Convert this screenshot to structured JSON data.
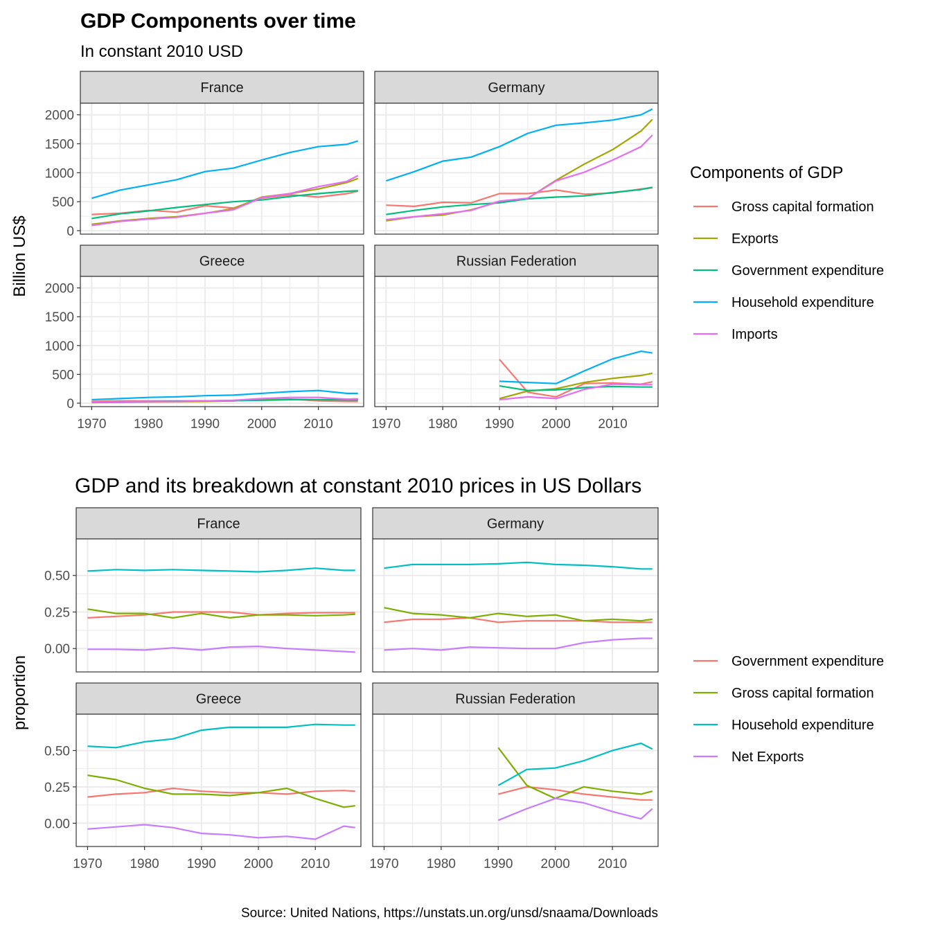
{
  "colors": {
    "gdp_components": [
      "#F8766D",
      "#A3A500",
      "#00BF7D",
      "#00B0F6",
      "#E76BF3"
    ],
    "breakdown": [
      "#F8766D",
      "#7CAE00",
      "#00BFC4",
      "#C77CFF"
    ],
    "strip_fill": "#D9D9D9",
    "grid": "#EBEBEB"
  },
  "top_chart": {
    "title": "GDP Components over time",
    "subtitle": "In constant 2010 USD",
    "ylabel": "Billion US$",
    "legend_title": "Components of GDP",
    "legend_position": "right",
    "y_ticks": [
      "0",
      "500",
      "1000",
      "1500",
      "2000"
    ],
    "x_ticks": [
      "1970",
      "1980",
      "1990",
      "2000",
      "2010"
    ]
  },
  "bottom_chart": {
    "title": "GDP and its breakdown at constant 2010 prices in US Dollars",
    "ylabel": "proportion",
    "legend_position": "right",
    "y_ticks": [
      "0.00",
      "0.25",
      "0.50"
    ],
    "x_ticks": [
      "1970",
      "1980",
      "1990",
      "2000",
      "2010"
    ]
  },
  "source": "Source: United Nations, https://unstats.un.org/unsd/snaama/Downloads",
  "chart_data": [
    {
      "type": "line",
      "title": "GDP Components over time",
      "subtitle": "In constant 2010 USD",
      "ylabel": "Billion US$",
      "xlim": [
        1968,
        2018
      ],
      "ylim": [
        -60,
        2200
      ],
      "grid": true,
      "x": [
        1970,
        1975,
        1980,
        1985,
        1990,
        1995,
        2000,
        2005,
        2010,
        2015,
        2017
      ],
      "series_names": [
        "Gross capital formation",
        "Exports",
        "Government expenditure",
        "Household expenditure",
        "Imports"
      ],
      "facets": [
        {
          "name": "France",
          "series": [
            {
              "name": "Gross capital formation",
              "values": [
                280,
                300,
                350,
                320,
                430,
                390,
                560,
                620,
                580,
                640,
                680
              ]
            },
            {
              "name": "Exports",
              "values": [
                110,
                170,
                210,
                240,
                300,
                380,
                580,
                640,
                720,
                830,
                900
              ]
            },
            {
              "name": "Government expenditure",
              "values": [
                210,
                290,
                340,
                400,
                450,
                500,
                530,
                590,
                640,
                680,
                690
              ]
            },
            {
              "name": "Household expenditure",
              "values": [
                560,
                700,
                790,
                880,
                1020,
                1080,
                1220,
                1350,
                1450,
                1490,
                1550
              ]
            },
            {
              "name": "Imports",
              "values": [
                90,
                160,
                200,
                230,
                300,
                360,
                570,
                640,
                760,
                850,
                950
              ]
            }
          ]
        },
        {
          "name": "Germany",
          "series": [
            {
              "name": "Gross capital formation",
              "values": [
                440,
                420,
                490,
                480,
                640,
                640,
                700,
                630,
                650,
                720,
                740
              ]
            },
            {
              "name": "Exports",
              "values": [
                170,
                240,
                270,
                360,
                500,
                560,
                870,
                1150,
                1400,
                1720,
                1920
              ]
            },
            {
              "name": "Government expenditure",
              "values": [
                280,
                350,
                410,
                450,
                480,
                550,
                580,
                600,
                660,
                710,
                750
              ]
            },
            {
              "name": "Household expenditure",
              "values": [
                860,
                1020,
                1200,
                1270,
                1450,
                1680,
                1820,
                1860,
                1910,
                2000,
                2100
              ]
            },
            {
              "name": "Imports",
              "values": [
                190,
                240,
                290,
                350,
                510,
                560,
                860,
                1010,
                1220,
                1450,
                1650
              ]
            }
          ]
        },
        {
          "name": "Greece",
          "series": [
            {
              "name": "Gross capital formation",
              "values": [
                30,
                40,
                40,
                40,
                40,
                40,
                60,
                70,
                40,
                30,
                30
              ]
            },
            {
              "name": "Exports",
              "values": [
                10,
                15,
                20,
                25,
                30,
                40,
                60,
                70,
                60,
                70,
                75
              ]
            },
            {
              "name": "Government expenditure",
              "values": [
                20,
                25,
                30,
                35,
                40,
                45,
                50,
                60,
                60,
                55,
                55
              ]
            },
            {
              "name": "Household expenditure",
              "values": [
                60,
                80,
                100,
                110,
                130,
                140,
                170,
                200,
                220,
                170,
                170
              ]
            },
            {
              "name": "Imports",
              "values": [
                20,
                25,
                30,
                30,
                40,
                50,
                80,
                100,
                100,
                70,
                75
              ]
            }
          ]
        },
        {
          "name": "Russian Federation",
          "series": [
            {
              "name": "Gross capital formation",
              "values": [
                null,
                null,
                null,
                null,
                760,
                190,
                110,
                340,
                350,
                330,
                370
              ]
            },
            {
              "name": "Exports",
              "values": [
                null,
                null,
                null,
                null,
                80,
                210,
                250,
                360,
                430,
                480,
                520
              ]
            },
            {
              "name": "Government expenditure",
              "values": [
                null,
                null,
                null,
                null,
                300,
                220,
                230,
                270,
                290,
                280,
                280
              ]
            },
            {
              "name": "Household expenditure",
              "values": [
                null,
                null,
                null,
                null,
                380,
                360,
                340,
                560,
                770,
                900,
                870
              ]
            },
            {
              "name": "Imports",
              "values": [
                null,
                null,
                null,
                null,
                60,
                110,
                80,
                240,
                330,
                320,
                320
              ]
            }
          ]
        }
      ]
    },
    {
      "type": "line",
      "title": "GDP and its breakdown at constant 2010 prices in US Dollars",
      "ylabel": "proportion",
      "xlim": [
        1968,
        2018
      ],
      "ylim": [
        -0.16,
        0.75
      ],
      "grid": true,
      "x": [
        1970,
        1975,
        1980,
        1985,
        1990,
        1995,
        2000,
        2005,
        2010,
        2015,
        2017
      ],
      "series_names": [
        "Government expenditure",
        "Gross capital formation",
        "Household expenditure",
        "Net Exports"
      ],
      "facets": [
        {
          "name": "France",
          "series": [
            {
              "name": "Government expenditure",
              "values": [
                0.21,
                0.22,
                0.23,
                0.25,
                0.25,
                0.25,
                0.23,
                0.24,
                0.245,
                0.245,
                0.245
              ]
            },
            {
              "name": "Gross capital formation",
              "values": [
                0.27,
                0.24,
                0.24,
                0.21,
                0.24,
                0.21,
                0.23,
                0.23,
                0.225,
                0.23,
                0.235
              ]
            },
            {
              "name": "Household expenditure",
              "values": [
                0.53,
                0.54,
                0.535,
                0.54,
                0.535,
                0.53,
                0.525,
                0.535,
                0.55,
                0.535,
                0.535
              ]
            },
            {
              "name": "Net Exports",
              "values": [
                -0.005,
                -0.005,
                -0.01,
                0.005,
                -0.01,
                0.01,
                0.015,
                0.0,
                -0.01,
                -0.02,
                -0.025
              ]
            }
          ]
        },
        {
          "name": "Germany",
          "series": [
            {
              "name": "Government expenditure",
              "values": [
                0.18,
                0.2,
                0.2,
                0.21,
                0.18,
                0.19,
                0.19,
                0.19,
                0.18,
                0.18,
                0.18
              ]
            },
            {
              "name": "Gross capital formation",
              "values": [
                0.28,
                0.24,
                0.23,
                0.21,
                0.24,
                0.22,
                0.23,
                0.19,
                0.2,
                0.19,
                0.2
              ]
            },
            {
              "name": "Household expenditure",
              "values": [
                0.55,
                0.575,
                0.575,
                0.575,
                0.58,
                0.59,
                0.575,
                0.57,
                0.56,
                0.545,
                0.545
              ]
            },
            {
              "name": "Net Exports",
              "values": [
                -0.01,
                0.0,
                -0.01,
                0.01,
                0.005,
                0.0,
                0.0,
                0.04,
                0.06,
                0.07,
                0.07
              ]
            }
          ]
        },
        {
          "name": "Greece",
          "series": [
            {
              "name": "Government expenditure",
              "values": [
                0.18,
                0.2,
                0.21,
                0.24,
                0.22,
                0.21,
                0.21,
                0.2,
                0.22,
                0.225,
                0.22
              ]
            },
            {
              "name": "Gross capital formation",
              "values": [
                0.33,
                0.3,
                0.24,
                0.2,
                0.2,
                0.19,
                0.21,
                0.24,
                0.17,
                0.11,
                0.12
              ]
            },
            {
              "name": "Household expenditure",
              "values": [
                0.53,
                0.52,
                0.56,
                0.58,
                0.64,
                0.66,
                0.66,
                0.66,
                0.68,
                0.675,
                0.675
              ]
            },
            {
              "name": "Net Exports",
              "values": [
                -0.04,
                -0.025,
                -0.01,
                -0.03,
                -0.07,
                -0.08,
                -0.1,
                -0.09,
                -0.11,
                -0.02,
                -0.03
              ]
            }
          ]
        },
        {
          "name": "Russian Federation",
          "series": [
            {
              "name": "Government expenditure",
              "values": [
                null,
                null,
                null,
                null,
                0.2,
                0.25,
                0.23,
                0.2,
                0.18,
                0.16,
                0.16
              ]
            },
            {
              "name": "Gross capital formation",
              "values": [
                null,
                null,
                null,
                null,
                0.52,
                0.26,
                0.17,
                0.25,
                0.22,
                0.2,
                0.22
              ]
            },
            {
              "name": "Household expenditure",
              "values": [
                null,
                null,
                null,
                null,
                0.26,
                0.37,
                0.38,
                0.43,
                0.5,
                0.55,
                0.51
              ]
            },
            {
              "name": "Net Exports",
              "values": [
                null,
                null,
                null,
                null,
                0.02,
                0.1,
                0.17,
                0.14,
                0.08,
                0.03,
                0.1
              ]
            }
          ]
        }
      ]
    }
  ]
}
